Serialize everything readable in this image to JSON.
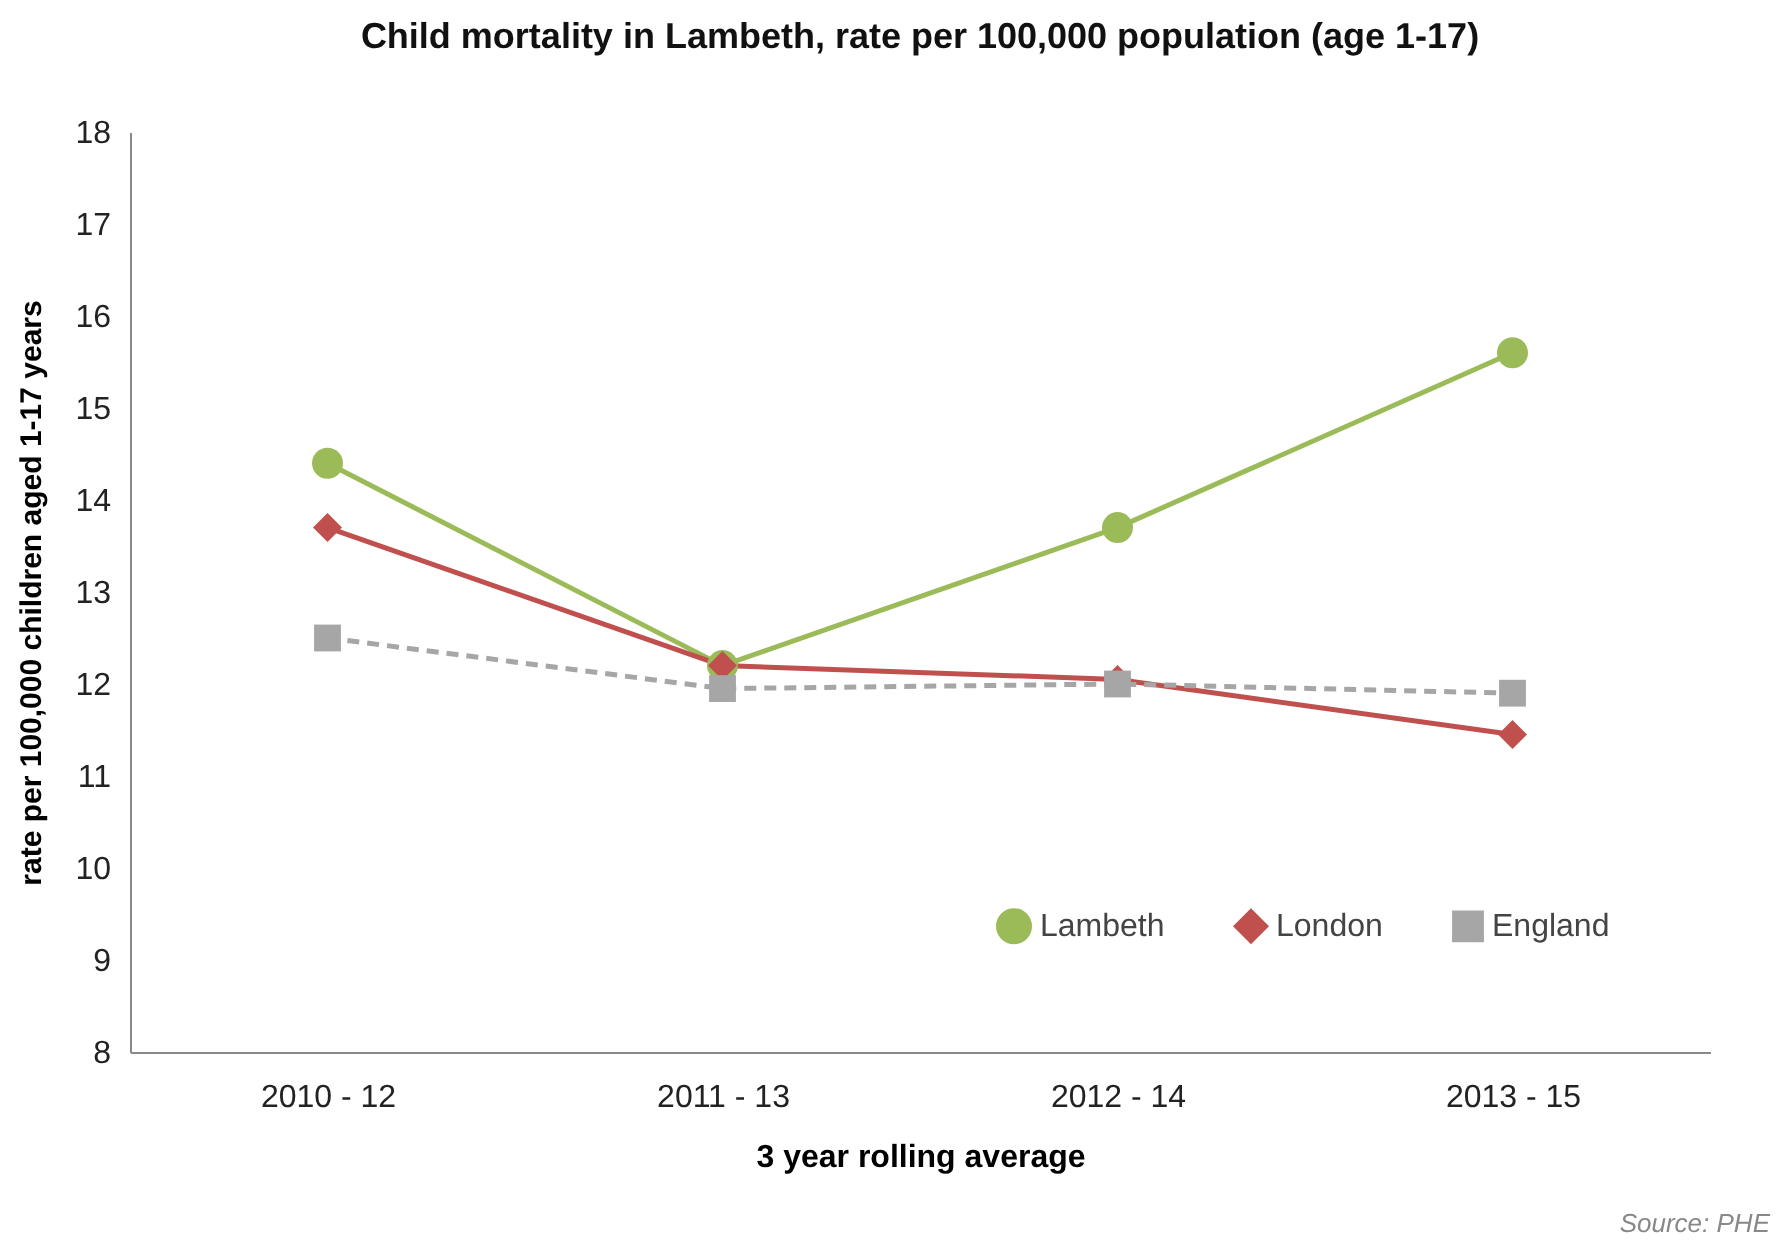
{
  "chart_data": {
    "type": "line",
    "title": "Child mortality in Lambeth, rate per 100,000 population  (age 1-17)",
    "xlabel": "3 year rolling average",
    "ylabel": "rate per 100,000 children aged 1-17 years",
    "categories": [
      "2010 - 12",
      "2011 - 13",
      "2012 - 14",
      "2013 - 15"
    ],
    "series": [
      {
        "name": "Lambeth",
        "color": "#9bbb59",
        "marker": "circle",
        "line_style": "solid",
        "values": [
          14.4,
          12.2,
          13.7,
          15.6
        ]
      },
      {
        "name": "London",
        "color": "#c0504d",
        "marker": "diamond",
        "line_style": "solid",
        "values": [
          13.7,
          12.2,
          12.05,
          11.45
        ]
      },
      {
        "name": "England",
        "color": "#a6a6a6",
        "marker": "square",
        "line_style": "dashed",
        "values": [
          12.5,
          11.95,
          12.0,
          11.9
        ]
      }
    ],
    "ylim": [
      8,
      18
    ],
    "yticks": [
      8,
      9,
      10,
      11,
      12,
      13,
      14,
      15,
      16,
      17,
      18
    ],
    "grid": false,
    "legend": "bottom right",
    "annotations": [
      "Source: PHE"
    ]
  }
}
